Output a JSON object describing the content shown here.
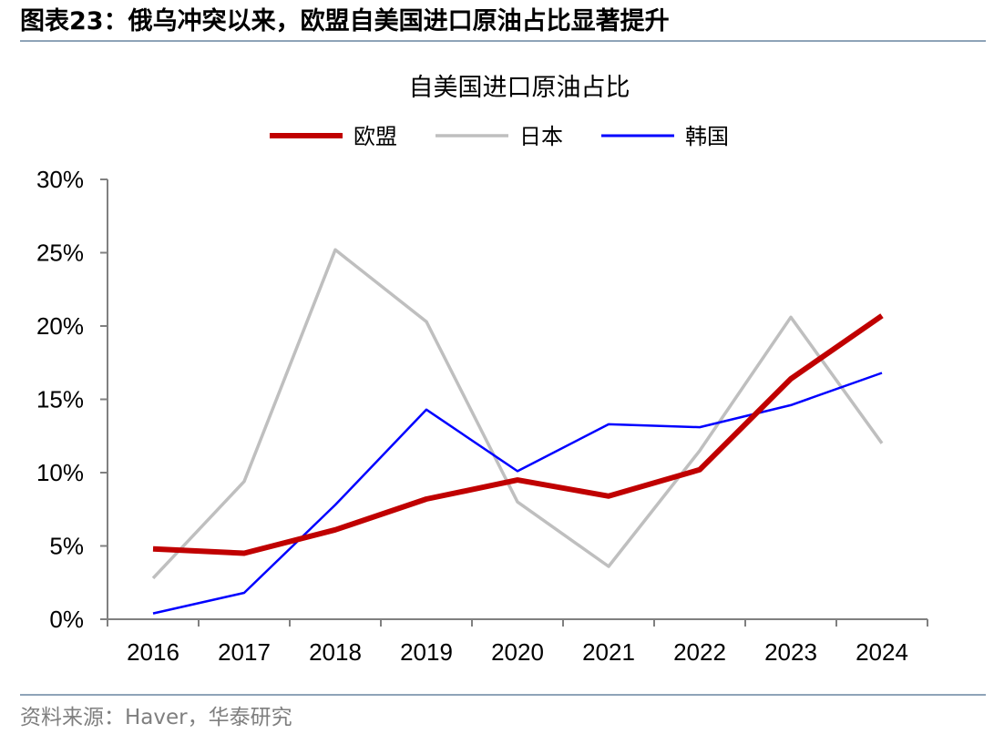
{
  "header": {
    "figure_number": "图表23：",
    "caption": "俄乌冲突以来，欧盟自美国进口原油占比显著提升"
  },
  "footer": {
    "source_label": "资料来源：",
    "source_text": "Haver，华泰研究"
  },
  "colors": {
    "eu": "#c00000",
    "japan": "#bfbfbf",
    "korea": "#0000ff",
    "rule": "#8ea3b8",
    "axis": "#808080"
  },
  "chart_data": {
    "type": "line",
    "title": "自美国进口原油占比",
    "xlabel": "",
    "ylabel": "",
    "x": [
      "2016",
      "2017",
      "2018",
      "2019",
      "2020",
      "2021",
      "2022",
      "2023",
      "2024"
    ],
    "ylim": [
      0,
      30
    ],
    "yticks": [
      0,
      5,
      10,
      15,
      20,
      25,
      30
    ],
    "ytick_labels": [
      "0%",
      "5%",
      "10%",
      "15%",
      "20%",
      "25%",
      "30%"
    ],
    "y_unit": "%",
    "grid": false,
    "legend": "top-center",
    "series": [
      {
        "key": "eu",
        "name": "欧盟",
        "values": [
          4.8,
          4.5,
          6.1,
          8.2,
          9.5,
          8.4,
          10.2,
          16.4,
          20.7
        ]
      },
      {
        "key": "japan",
        "name": "日本",
        "values": [
          2.8,
          9.4,
          25.2,
          20.3,
          8.0,
          3.6,
          11.5,
          20.6,
          12.0
        ]
      },
      {
        "key": "korea",
        "name": "韩国",
        "values": [
          0.4,
          1.8,
          7.8,
          14.3,
          10.1,
          13.3,
          13.1,
          14.6,
          16.8
        ]
      }
    ]
  }
}
